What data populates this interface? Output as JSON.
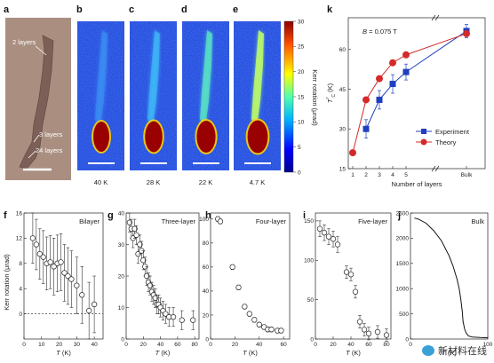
{
  "panel_letters": {
    "a": "a",
    "b": "b",
    "c": "c",
    "d": "d",
    "e": "e",
    "k": "k",
    "f": "f",
    "g": "g",
    "h": "h",
    "i": "i",
    "j": "j"
  },
  "panel_a": {
    "annotations": [
      "2 layers",
      "3 layers",
      "24 layers"
    ]
  },
  "kerr_maps": {
    "temperatures": [
      "40 K",
      "28 K",
      "22 K",
      "4.7 K"
    ],
    "colorbar": {
      "label": "Kerr rotation (μrad)",
      "ticks": [
        "30",
        "25",
        "20",
        "15",
        "10",
        "5",
        "0"
      ],
      "min": 0,
      "max": 30
    }
  },
  "panel_k": {
    "annotation": "B = 0.075 T",
    "ylabel": "T_C* (K)",
    "xlabel": "Number of layers",
    "colors": {
      "experiment": "#1f3fbf",
      "theory": "#d42a2a"
    }
  },
  "bottom_xlabel": "T (K)",
  "bottom_ylabel": "Kerr rotation (μrad)",
  "watermark": "新材料在线",
  "chart_data": [
    {
      "id": "k",
      "type": "line",
      "xlabel": "Number of layers",
      "ylabel": "T_C* (K)",
      "x_tick_labels": [
        "1",
        "2",
        "3",
        "4",
        "5",
        "Bulk"
      ],
      "y_ticks": [
        15,
        30,
        45,
        60
      ],
      "ylim": [
        15,
        72
      ],
      "legend_placement": "bottom-right",
      "series": [
        {
          "name": "Experiment",
          "x": [
            2,
            3,
            4,
            5,
            "Bulk"
          ],
          "y": [
            30,
            41,
            47,
            51.5,
            67
          ],
          "err": [
            3.5,
            3.5,
            3.5,
            3,
            2.5
          ]
        },
        {
          "name": "Theory",
          "x": [
            1,
            2,
            3,
            4,
            5,
            "Bulk"
          ],
          "y": [
            21,
            41,
            49,
            55,
            58,
            66
          ],
          "err": [
            0,
            0,
            0,
            0,
            0,
            0
          ]
        }
      ]
    },
    {
      "id": "f",
      "type": "scatter",
      "label": "Bilayer",
      "xlabel": "T (K)",
      "ylabel": "Kerr rotation (μrad)",
      "xlim": [
        0,
        45
      ],
      "ylim": [
        -4,
        16
      ],
      "x_ticks": [
        0,
        10,
        20,
        30,
        40
      ],
      "y_ticks": [
        0,
        4,
        8,
        12,
        16
      ],
      "dashed_zero": true,
      "x": [
        5,
        7,
        9,
        11,
        13,
        15,
        17,
        19,
        21,
        23,
        25,
        27,
        30,
        33,
        37,
        40
      ],
      "y": [
        12,
        11,
        9.5,
        9,
        8,
        8.2,
        7.5,
        8,
        8.2,
        6.5,
        6,
        5.5,
        4.5,
        3,
        0.5,
        1.5
      ],
      "err": [
        4,
        4,
        4,
        4.2,
        4.2,
        4.2,
        4.5,
        4.5,
        4.5,
        4.5,
        4.5,
        4.5,
        4.5,
        4.5,
        4.5,
        4.5
      ]
    },
    {
      "id": "g",
      "type": "scatter",
      "label": "Three-layer",
      "xlim": [
        0,
        85
      ],
      "ylim": [
        0,
        40
      ],
      "x_ticks": [
        0,
        20,
        40,
        60,
        80
      ],
      "y_ticks": [
        0,
        10,
        20,
        30,
        40
      ],
      "x": [
        4,
        6,
        8,
        10,
        12,
        14,
        16,
        18,
        20,
        22,
        24,
        26,
        28,
        30,
        32,
        34,
        36,
        38,
        40,
        43,
        46,
        50,
        55,
        65,
        78
      ],
      "y": [
        37,
        35,
        32,
        35,
        33,
        27,
        30,
        28,
        25,
        23,
        20,
        18,
        17,
        15,
        14,
        13,
        11,
        11,
        10,
        9,
        8,
        7,
        7,
        6,
        6
      ],
      "err": [
        3,
        3,
        3,
        3,
        3,
        3,
        3,
        3,
        3,
        3,
        3,
        3,
        3,
        3,
        3,
        3,
        3,
        3,
        3,
        3,
        3,
        3,
        3,
        3,
        3
      ]
    },
    {
      "id": "h",
      "type": "scatter",
      "label": "Four-layer",
      "xlim": [
        0,
        65
      ],
      "ylim": [
        0,
        105
      ],
      "x_ticks": [
        0,
        20,
        40,
        60
      ],
      "y_ticks": [
        0,
        20,
        40,
        60,
        80,
        100
      ],
      "x": [
        6,
        8,
        18,
        23,
        28,
        32,
        36,
        40,
        44,
        47,
        50,
        55,
        58
      ],
      "y": [
        100,
        98,
        60,
        43,
        27,
        21,
        16,
        12,
        10,
        8,
        8,
        7,
        7
      ],
      "err": [
        2,
        2,
        2,
        2,
        2,
        2,
        2,
        2,
        2,
        2,
        2,
        2,
        2
      ]
    },
    {
      "id": "i",
      "type": "scatter",
      "label": "Five-layer",
      "xlim": [
        0,
        85
      ],
      "ylim": [
        0,
        160
      ],
      "x_ticks": [
        0,
        20,
        40,
        60,
        80
      ],
      "y_ticks": [
        0,
        50,
        100,
        150
      ],
      "x": [
        5,
        10,
        15,
        20,
        25,
        35,
        40,
        45,
        50,
        55,
        60,
        70,
        80
      ],
      "y": [
        140,
        135,
        130,
        127,
        120,
        85,
        82,
        60,
        22,
        12,
        7,
        9,
        5
      ],
      "err": [
        10,
        10,
        10,
        10,
        10,
        8,
        8,
        8,
        8,
        8,
        8,
        8,
        8
      ]
    },
    {
      "id": "j",
      "type": "line",
      "label": "Bulk",
      "xlim": [
        0,
        100
      ],
      "ylim": [
        0,
        2500
      ],
      "x_ticks": [
        0,
        100
      ],
      "y_ticks": [
        0,
        500,
        1000,
        1500,
        2000,
        2500
      ],
      "x": [
        5,
        10,
        20,
        30,
        40,
        50,
        55,
        60,
        63,
        65,
        67,
        68,
        70,
        72,
        75,
        80,
        90,
        100
      ],
      "y": [
        2400,
        2380,
        2300,
        2150,
        1950,
        1650,
        1450,
        1200,
        1000,
        800,
        550,
        350,
        200,
        120,
        60,
        40,
        30,
        25
      ]
    }
  ]
}
